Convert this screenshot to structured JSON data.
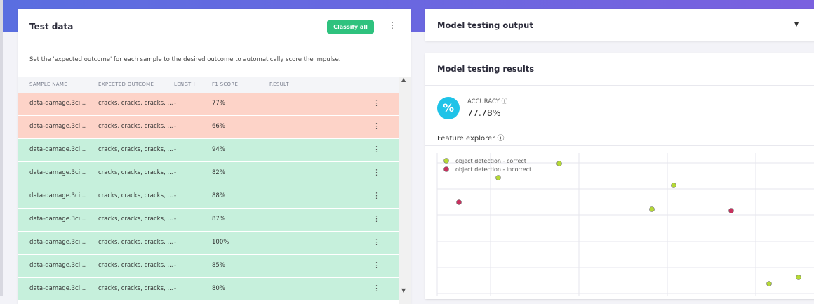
{
  "test_data": {
    "title": "Test data",
    "button": "Classify all",
    "description": "Set the 'expected outcome' for each sample to the desired outcome to automatically score the impulse.",
    "columns": [
      "SAMPLE NAME",
      "EXPECTED OUTCOME",
      "LENGTH",
      "F1 SCORE",
      "RESULT"
    ],
    "rows": [
      {
        "cells": [
          "data-damage.3ci...",
          "cracks, cracks, cracks, ...",
          "-",
          "77%"
        ],
        "color": "#fdd3c8"
      },
      {
        "cells": [
          "data-damage.3ci...",
          "cracks, cracks, cracks, ...",
          "-",
          "66%"
        ],
        "color": "#fdd3c8"
      },
      {
        "cells": [
          "data-damage.3ci...",
          "cracks, cracks, cracks, ...",
          "-",
          "94%"
        ],
        "color": "#c6f0dc"
      },
      {
        "cells": [
          "data-damage.3ci...",
          "cracks, cracks, cracks, ...",
          "-",
          "82%"
        ],
        "color": "#c6f0dc"
      },
      {
        "cells": [
          "data-damage.3ci...",
          "cracks, cracks, cracks, ...",
          "-",
          "88%"
        ],
        "color": "#c6f0dc"
      },
      {
        "cells": [
          "data-damage.3ci...",
          "cracks, cracks, cracks, ...",
          "-",
          "87%"
        ],
        "color": "#c6f0dc"
      },
      {
        "cells": [
          "data-damage.3ci...",
          "cracks, cracks, cracks, ...",
          "-",
          "100%"
        ],
        "color": "#c6f0dc"
      },
      {
        "cells": [
          "data-damage.3ci...",
          "cracks, cracks, cracks, ...",
          "-",
          "85%"
        ],
        "color": "#c6f0dc"
      },
      {
        "cells": [
          "data-damage.3ci...",
          "cracks, cracks, cracks, ...",
          "-",
          "80%"
        ],
        "color": "#c6f0dc"
      }
    ]
  },
  "output_panel": {
    "title": "Model testing output"
  },
  "results": {
    "title": "Model testing results",
    "accuracy_label": "ACCURACY",
    "accuracy_value": "77.78%",
    "feature_explorer": "Feature explorer",
    "legend": [
      {
        "name": "object detection - correct",
        "color": "#b5d936"
      },
      {
        "name": "object detection - incorrect",
        "color": "#c9305e"
      }
    ]
  }
}
